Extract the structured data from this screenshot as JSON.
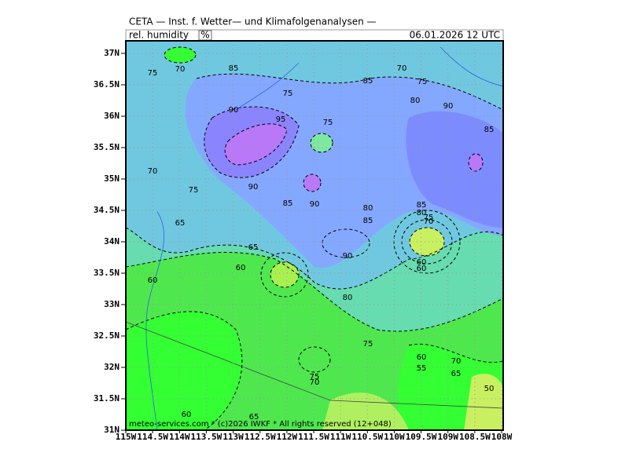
{
  "header": {
    "title": "CETA — Inst. f. Wetter— und Klimafolgenanalysen —",
    "field_label": "rel. humidity",
    "unit": "%",
    "datetime": "06.01.2026  12 UTC"
  },
  "map": {
    "lat_ticks": [
      "37N",
      "36.5N",
      "36N",
      "35.5N",
      "35N",
      "34.5N",
      "34N",
      "33.5N",
      "33N",
      "32.5N",
      "32N",
      "31.5N",
      "31N"
    ],
    "lon_ticks": [
      "115W",
      "114.5W",
      "114W",
      "113.5W",
      "113W",
      "112.5W",
      "112W",
      "111.5W",
      "111W",
      "110.5W",
      "110W",
      "109.5W",
      "109W",
      "108.5W",
      "108W"
    ],
    "contour_labels": [
      "75",
      "70",
      "85",
      "70",
      "85",
      "75",
      "80",
      "90",
      "75",
      "90",
      "95",
      "75",
      "85",
      "70",
      "75",
      "90",
      "85",
      "90",
      "80",
      "85",
      "80",
      "75",
      "70",
      "85",
      "65",
      "65",
      "90",
      "60",
      "60",
      "60",
      "60",
      "80",
      "75",
      "60",
      "70",
      "55",
      "65",
      "75",
      "70",
      "50",
      "60",
      "65"
    ]
  },
  "footer": "meteo-services.com * (c)2026 IWKF * All rights reserved (12+048)"
}
